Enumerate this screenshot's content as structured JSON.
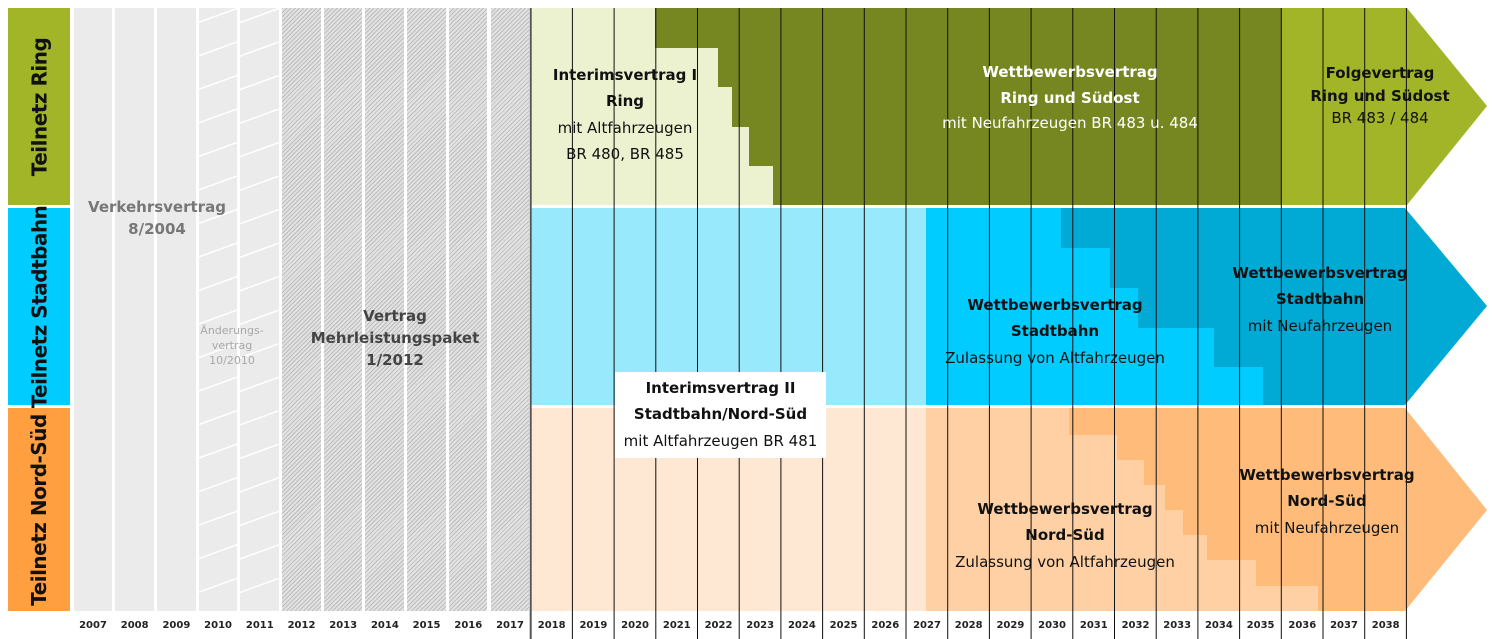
{
  "rows": [
    {
      "label": "Teilnetz Ring",
      "color": "#a2b529"
    },
    {
      "label": "Teilnetz Stadtbahn",
      "color": "#00ccff"
    },
    {
      "label": "Teilnetz Nord-Süd",
      "color": "#ff9f3f"
    }
  ],
  "years": [
    "2007",
    "2008",
    "2009",
    "2010",
    "2011",
    "2012",
    "2013",
    "2014",
    "2015",
    "2016",
    "2017",
    "2018",
    "2019",
    "2020",
    "2021",
    "2022",
    "2023",
    "2024",
    "2025",
    "2026",
    "2027",
    "2028",
    "2029",
    "2030",
    "2031",
    "2032",
    "2033",
    "2034",
    "2035",
    "2036",
    "2037",
    "2038"
  ],
  "contracts": {
    "verkehrsvertrag": {
      "line1": "Verkehrsvertrag",
      "line2": "8/2004"
    },
    "aenderung": {
      "line1": "Änderungs-",
      "line2": "vertrag",
      "line3": "10/2010"
    },
    "mehrleistung": {
      "line1": "Vertrag",
      "line2": "Mehrleistungspaket",
      "line3": "1/2012"
    },
    "interim1": {
      "title1": "Interimsvertrag I",
      "title2": "Ring",
      "sub1": "mit Altfahrzeugen",
      "sub2": "BR 480, BR 485"
    },
    "ring_wettbewerb": {
      "title1": "Wettbewerbsvertrag",
      "title2": "Ring und Südost",
      "sub": "mit Neufahrzeugen BR 483 u. 484"
    },
    "ring_folge": {
      "title1": "Folgevertrag",
      "title2": "Ring und Südost",
      "sub": "BR 483 / 484"
    },
    "interim2": {
      "title1": "Interimsvertrag II",
      "title2": "Stadtbahn/Nord-Süd",
      "sub": "mit Altfahrzeugen BR 481"
    },
    "stadtbahn_alt": {
      "title1": "Wettbewerbsvertrag",
      "title2": "Stadtbahn",
      "sub": "Zulassung von Altfahrzeugen"
    },
    "stadtbahn_neu": {
      "title1": "Wettbewerbsvertrag",
      "title2": "Stadtbahn",
      "sub": "mit Neufahrzeugen"
    },
    "nordsued_alt": {
      "title1": "Wettbewerbsvertrag",
      "title2": "Nord-Süd",
      "sub": "Zulassung von Altfahrzeugen"
    },
    "nordsued_neu": {
      "title1": "Wettbewerbsvertrag",
      "title2": "Nord-Süd",
      "sub": "mit Neufahrzeugen"
    }
  },
  "colors": {
    "ring_interim": "#ecf2cf",
    "ring_wettbewerb": "#768620",
    "ring_folge": "#a2b529",
    "stadtbahn_interim": "#99e9fd",
    "stadtbahn_alt": "#00ccff",
    "stadtbahn_neu": "#00aad4",
    "nordsued_interim": "#fee8d4",
    "nordsued_alt": "#fed0a3",
    "nordsued_neu": "#febb79"
  }
}
